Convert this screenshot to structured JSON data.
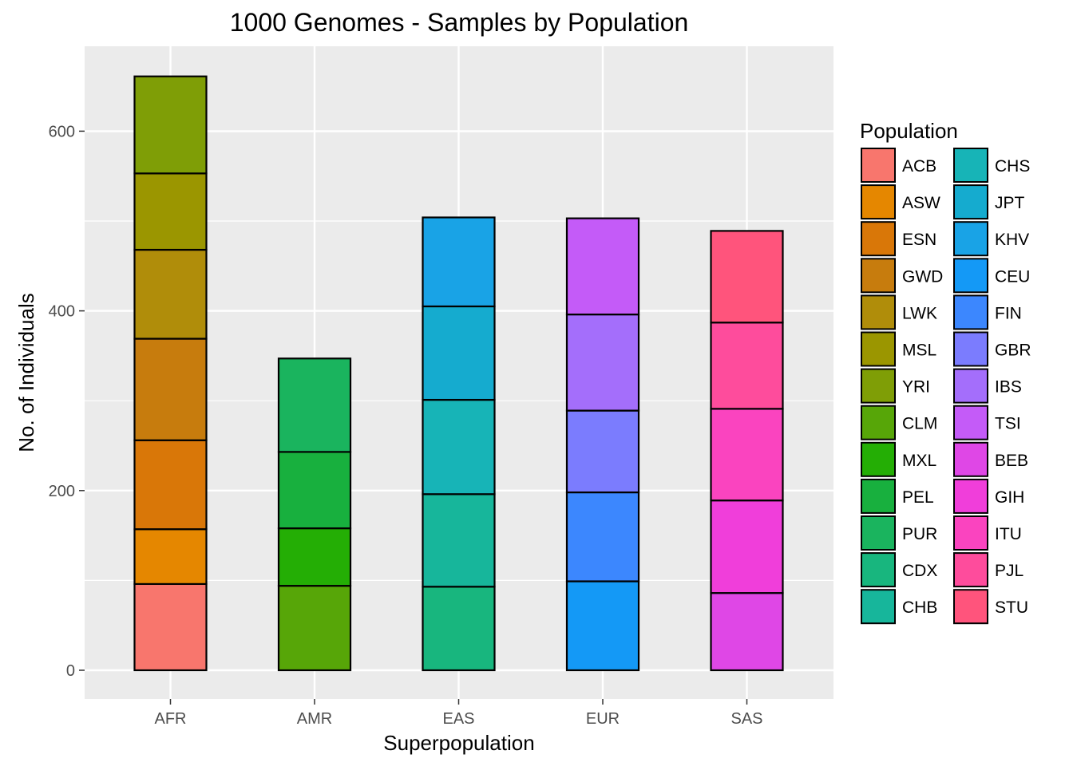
{
  "chart_data": {
    "type": "bar",
    "stacked": true,
    "title": "1000 Genomes - Samples by Population",
    "xlabel": "Superpopulation",
    "ylabel": "No. of Individuals",
    "categories": [
      "AFR",
      "AMR",
      "EAS",
      "EUR",
      "SAS"
    ],
    "yticks": [
      0,
      200,
      400,
      600
    ],
    "ylim": [
      -30,
      692
    ],
    "grid": true,
    "legend": {
      "title": "Population",
      "placement": "right",
      "columns": 2
    },
    "series": [
      {
        "name": "ACB",
        "color": "#F8766D",
        "category": "AFR",
        "value": 96
      },
      {
        "name": "ASW",
        "color": "#E58700",
        "category": "AFR",
        "value": 61
      },
      {
        "name": "ESN",
        "color": "#D97708",
        "category": "AFR",
        "value": 99
      },
      {
        "name": "GWD",
        "color": "#C77C0D",
        "category": "AFR",
        "value": 113
      },
      {
        "name": "LWK",
        "color": "#B08D0A",
        "category": "AFR",
        "value": 99
      },
      {
        "name": "MSL",
        "color": "#9B9600",
        "category": "AFR",
        "value": 85
      },
      {
        "name": "YRI",
        "color": "#7F9E06",
        "category": "AFR",
        "value": 108
      },
      {
        "name": "CLM",
        "color": "#57A608",
        "category": "AMR",
        "value": 94
      },
      {
        "name": "MXL",
        "color": "#24AE05",
        "category": "AMR",
        "value": 64
      },
      {
        "name": "PEL",
        "color": "#18B03E",
        "category": "AMR",
        "value": 85
      },
      {
        "name": "PUR",
        "color": "#1AB45E",
        "category": "AMR",
        "value": 104
      },
      {
        "name": "CDX",
        "color": "#18B67E",
        "category": "EAS",
        "value": 93
      },
      {
        "name": "CHB",
        "color": "#17B69B",
        "category": "EAS",
        "value": 103
      },
      {
        "name": "CHS",
        "color": "#17B4B7",
        "category": "EAS",
        "value": 105
      },
      {
        "name": "JPT",
        "color": "#15ABCF",
        "category": "EAS",
        "value": 104
      },
      {
        "name": "KHV",
        "color": "#19A3E6",
        "category": "EAS",
        "value": 99
      },
      {
        "name": "CEU",
        "color": "#1499F6",
        "category": "EUR",
        "value": 99
      },
      {
        "name": "FIN",
        "color": "#3C87FE",
        "category": "EUR",
        "value": 99
      },
      {
        "name": "GBR",
        "color": "#7B7CFE",
        "category": "EUR",
        "value": 91
      },
      {
        "name": "IBS",
        "color": "#A46EFB",
        "category": "EUR",
        "value": 107
      },
      {
        "name": "TSI",
        "color": "#C45BF8",
        "category": "EUR",
        "value": 107
      },
      {
        "name": "BEB",
        "color": "#DF47E6",
        "category": "SAS",
        "value": 86
      },
      {
        "name": "GIH",
        "color": "#F03EDA",
        "category": "SAS",
        "value": 103
      },
      {
        "name": "ITU",
        "color": "#FA44BF",
        "category": "SAS",
        "value": 102
      },
      {
        "name": "PJL",
        "color": "#FE4C9C",
        "category": "SAS",
        "value": 96
      },
      {
        "name": "STU",
        "color": "#FF547C",
        "category": "SAS",
        "value": 102
      }
    ]
  }
}
